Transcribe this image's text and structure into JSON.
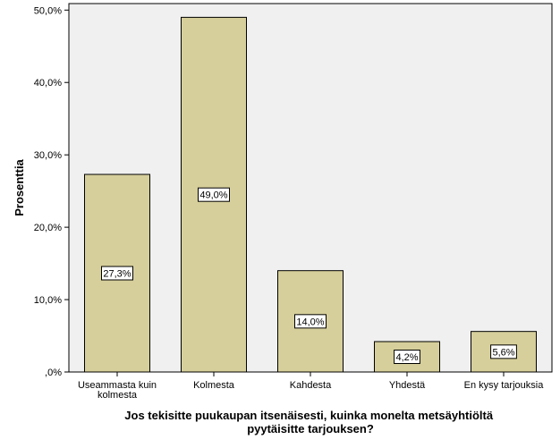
{
  "chart_data": {
    "type": "bar",
    "categories": [
      [
        "Useammasta kuin",
        "kolmesta"
      ],
      [
        "Kolmesta"
      ],
      [
        "Kahdesta"
      ],
      [
        "Yhdestä"
      ],
      [
        "En kysy tarjouksia"
      ]
    ],
    "values": [
      27.3,
      49.0,
      14.0,
      4.2,
      5.6
    ],
    "data_labels": [
      "27,3%",
      "49,0%",
      "14,0%",
      "4,2%",
      "5,6%"
    ],
    "y_ticks": [
      0,
      10,
      20,
      30,
      40,
      50
    ],
    "y_tick_labels": [
      ",0%",
      "10,0%",
      "20,0%",
      "30,0%",
      "40,0%",
      "50,0%"
    ],
    "ylim": [
      0,
      50.9
    ],
    "ylabel": "Prosenttia",
    "xlabel": [
      "Jos tekisitte puukaupan itsenäisesti, kuinka monelta metsäyhtiöltä",
      "pyytäisitte tarjouksen?"
    ],
    "grid": false,
    "colors": {
      "plot_background": "#f0f0f0",
      "bar_fill": "#d6cf9b",
      "bar_stroke": "#000000",
      "label_box": "#ffffff"
    }
  }
}
